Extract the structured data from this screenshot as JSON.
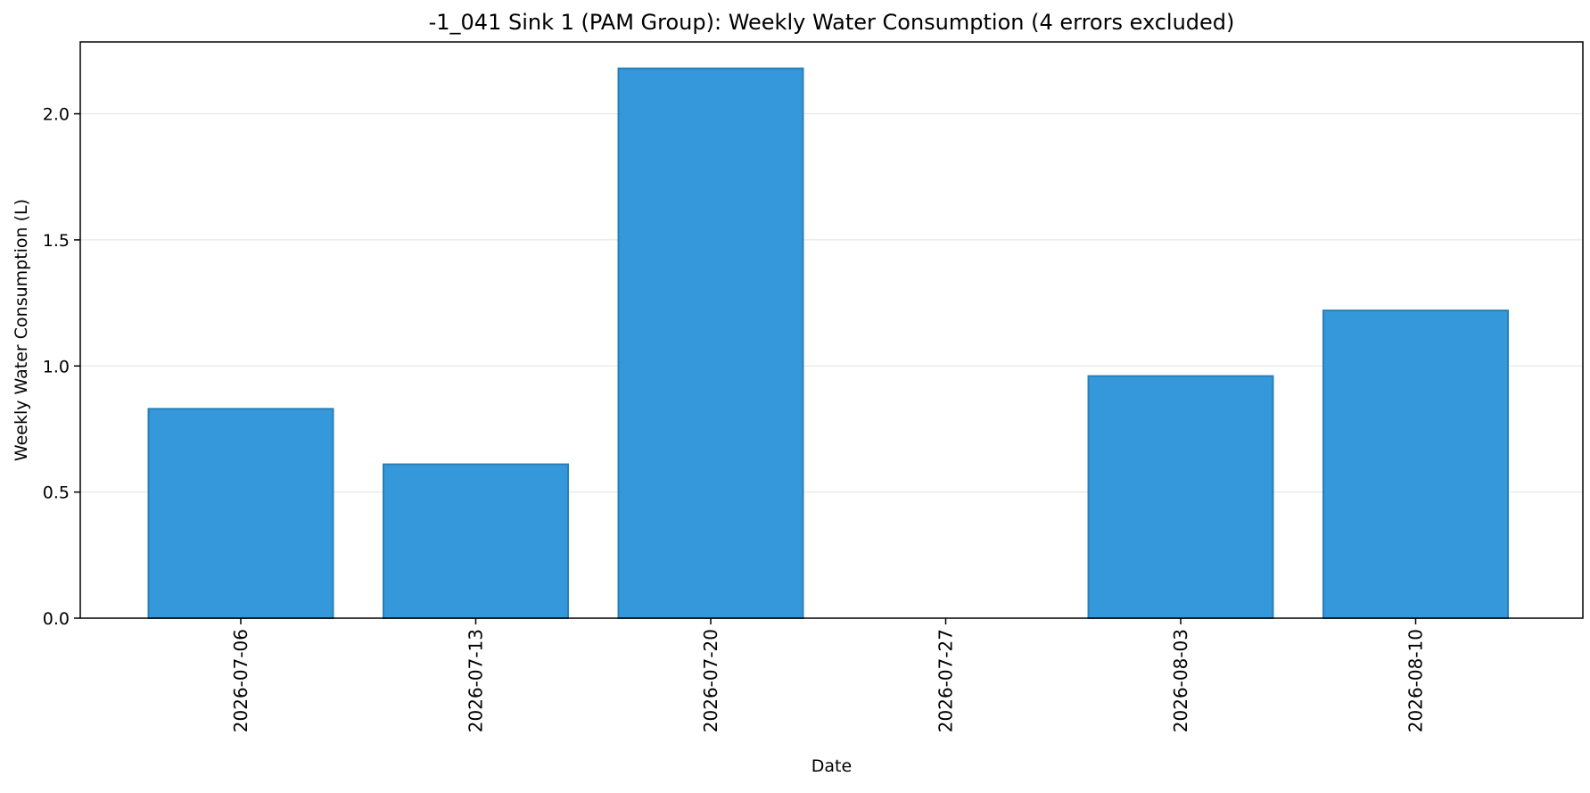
{
  "chart_data": {
    "type": "bar",
    "title": "-1_041 Sink 1 (PAM Group): Weekly Water Consumption (4 errors excluded)",
    "xlabel": "Date",
    "ylabel": "Weekly Water Consumption (L)",
    "categories": [
      "2026-07-06",
      "2026-07-13",
      "2026-07-20",
      "2026-07-27",
      "2026-08-03",
      "2026-08-10"
    ],
    "values": [
      0.83,
      0.61,
      2.18,
      0,
      0.96,
      1.22
    ],
    "ylim": [
      0,
      2.285
    ],
    "yticks": [
      0.0,
      0.5,
      1.0,
      1.5,
      2.0
    ],
    "ytick_labels": [
      "0.0",
      "0.5",
      "1.0",
      "1.5",
      "2.0"
    ],
    "grid": "horizontal",
    "legend": "none",
    "bar_color": "#3498db",
    "bar_edge_color": "#2980b9"
  }
}
